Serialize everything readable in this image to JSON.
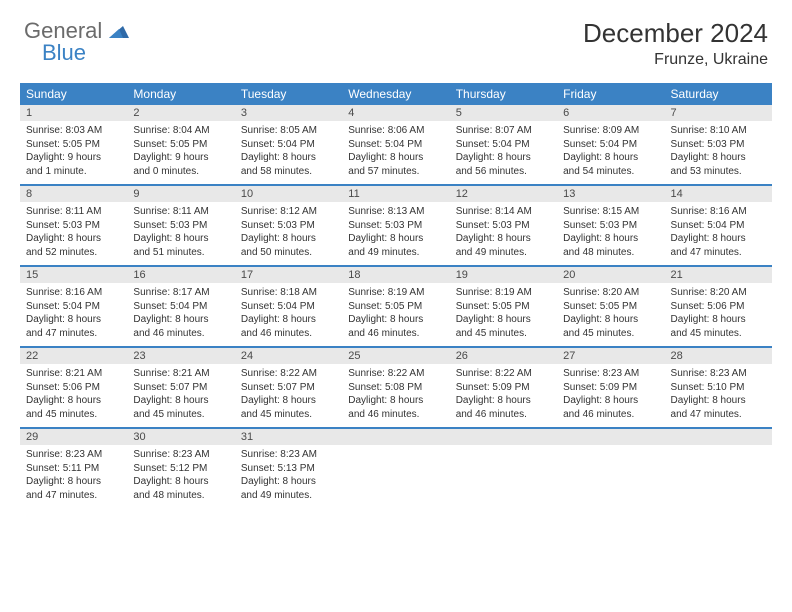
{
  "logo": {
    "word1": "General",
    "word2": "Blue"
  },
  "title": "December 2024",
  "location": "Frunze, Ukraine",
  "colors": {
    "header_bg": "#3b82c4",
    "daynum_bg": "#e8e8e8",
    "text": "#333333",
    "logo_gray": "#6b6b6b",
    "logo_blue": "#3b82c4"
  },
  "columns": [
    "Sunday",
    "Monday",
    "Tuesday",
    "Wednesday",
    "Thursday",
    "Friday",
    "Saturday"
  ],
  "days": [
    {
      "n": "1",
      "sunrise": "Sunrise: 8:03 AM",
      "sunset": "Sunset: 5:05 PM",
      "day1": "Daylight: 9 hours",
      "day2": "and 1 minute."
    },
    {
      "n": "2",
      "sunrise": "Sunrise: 8:04 AM",
      "sunset": "Sunset: 5:05 PM",
      "day1": "Daylight: 9 hours",
      "day2": "and 0 minutes."
    },
    {
      "n": "3",
      "sunrise": "Sunrise: 8:05 AM",
      "sunset": "Sunset: 5:04 PM",
      "day1": "Daylight: 8 hours",
      "day2": "and 58 minutes."
    },
    {
      "n": "4",
      "sunrise": "Sunrise: 8:06 AM",
      "sunset": "Sunset: 5:04 PM",
      "day1": "Daylight: 8 hours",
      "day2": "and 57 minutes."
    },
    {
      "n": "5",
      "sunrise": "Sunrise: 8:07 AM",
      "sunset": "Sunset: 5:04 PM",
      "day1": "Daylight: 8 hours",
      "day2": "and 56 minutes."
    },
    {
      "n": "6",
      "sunrise": "Sunrise: 8:09 AM",
      "sunset": "Sunset: 5:04 PM",
      "day1": "Daylight: 8 hours",
      "day2": "and 54 minutes."
    },
    {
      "n": "7",
      "sunrise": "Sunrise: 8:10 AM",
      "sunset": "Sunset: 5:03 PM",
      "day1": "Daylight: 8 hours",
      "day2": "and 53 minutes."
    },
    {
      "n": "8",
      "sunrise": "Sunrise: 8:11 AM",
      "sunset": "Sunset: 5:03 PM",
      "day1": "Daylight: 8 hours",
      "day2": "and 52 minutes."
    },
    {
      "n": "9",
      "sunrise": "Sunrise: 8:11 AM",
      "sunset": "Sunset: 5:03 PM",
      "day1": "Daylight: 8 hours",
      "day2": "and 51 minutes."
    },
    {
      "n": "10",
      "sunrise": "Sunrise: 8:12 AM",
      "sunset": "Sunset: 5:03 PM",
      "day1": "Daylight: 8 hours",
      "day2": "and 50 minutes."
    },
    {
      "n": "11",
      "sunrise": "Sunrise: 8:13 AM",
      "sunset": "Sunset: 5:03 PM",
      "day1": "Daylight: 8 hours",
      "day2": "and 49 minutes."
    },
    {
      "n": "12",
      "sunrise": "Sunrise: 8:14 AM",
      "sunset": "Sunset: 5:03 PM",
      "day1": "Daylight: 8 hours",
      "day2": "and 49 minutes."
    },
    {
      "n": "13",
      "sunrise": "Sunrise: 8:15 AM",
      "sunset": "Sunset: 5:03 PM",
      "day1": "Daylight: 8 hours",
      "day2": "and 48 minutes."
    },
    {
      "n": "14",
      "sunrise": "Sunrise: 8:16 AM",
      "sunset": "Sunset: 5:04 PM",
      "day1": "Daylight: 8 hours",
      "day2": "and 47 minutes."
    },
    {
      "n": "15",
      "sunrise": "Sunrise: 8:16 AM",
      "sunset": "Sunset: 5:04 PM",
      "day1": "Daylight: 8 hours",
      "day2": "and 47 minutes."
    },
    {
      "n": "16",
      "sunrise": "Sunrise: 8:17 AM",
      "sunset": "Sunset: 5:04 PM",
      "day1": "Daylight: 8 hours",
      "day2": "and 46 minutes."
    },
    {
      "n": "17",
      "sunrise": "Sunrise: 8:18 AM",
      "sunset": "Sunset: 5:04 PM",
      "day1": "Daylight: 8 hours",
      "day2": "and 46 minutes."
    },
    {
      "n": "18",
      "sunrise": "Sunrise: 8:19 AM",
      "sunset": "Sunset: 5:05 PM",
      "day1": "Daylight: 8 hours",
      "day2": "and 46 minutes."
    },
    {
      "n": "19",
      "sunrise": "Sunrise: 8:19 AM",
      "sunset": "Sunset: 5:05 PM",
      "day1": "Daylight: 8 hours",
      "day2": "and 45 minutes."
    },
    {
      "n": "20",
      "sunrise": "Sunrise: 8:20 AM",
      "sunset": "Sunset: 5:05 PM",
      "day1": "Daylight: 8 hours",
      "day2": "and 45 minutes."
    },
    {
      "n": "21",
      "sunrise": "Sunrise: 8:20 AM",
      "sunset": "Sunset: 5:06 PM",
      "day1": "Daylight: 8 hours",
      "day2": "and 45 minutes."
    },
    {
      "n": "22",
      "sunrise": "Sunrise: 8:21 AM",
      "sunset": "Sunset: 5:06 PM",
      "day1": "Daylight: 8 hours",
      "day2": "and 45 minutes."
    },
    {
      "n": "23",
      "sunrise": "Sunrise: 8:21 AM",
      "sunset": "Sunset: 5:07 PM",
      "day1": "Daylight: 8 hours",
      "day2": "and 45 minutes."
    },
    {
      "n": "24",
      "sunrise": "Sunrise: 8:22 AM",
      "sunset": "Sunset: 5:07 PM",
      "day1": "Daylight: 8 hours",
      "day2": "and 45 minutes."
    },
    {
      "n": "25",
      "sunrise": "Sunrise: 8:22 AM",
      "sunset": "Sunset: 5:08 PM",
      "day1": "Daylight: 8 hours",
      "day2": "and 46 minutes."
    },
    {
      "n": "26",
      "sunrise": "Sunrise: 8:22 AM",
      "sunset": "Sunset: 5:09 PM",
      "day1": "Daylight: 8 hours",
      "day2": "and 46 minutes."
    },
    {
      "n": "27",
      "sunrise": "Sunrise: 8:23 AM",
      "sunset": "Sunset: 5:09 PM",
      "day1": "Daylight: 8 hours",
      "day2": "and 46 minutes."
    },
    {
      "n": "28",
      "sunrise": "Sunrise: 8:23 AM",
      "sunset": "Sunset: 5:10 PM",
      "day1": "Daylight: 8 hours",
      "day2": "and 47 minutes."
    },
    {
      "n": "29",
      "sunrise": "Sunrise: 8:23 AM",
      "sunset": "Sunset: 5:11 PM",
      "day1": "Daylight: 8 hours",
      "day2": "and 47 minutes."
    },
    {
      "n": "30",
      "sunrise": "Sunrise: 8:23 AM",
      "sunset": "Sunset: 5:12 PM",
      "day1": "Daylight: 8 hours",
      "day2": "and 48 minutes."
    },
    {
      "n": "31",
      "sunrise": "Sunrise: 8:23 AM",
      "sunset": "Sunset: 5:13 PM",
      "day1": "Daylight: 8 hours",
      "day2": "and 49 minutes."
    }
  ],
  "layout": {
    "leading_blanks": 0,
    "trailing_blanks": 4,
    "weeks": 5
  }
}
